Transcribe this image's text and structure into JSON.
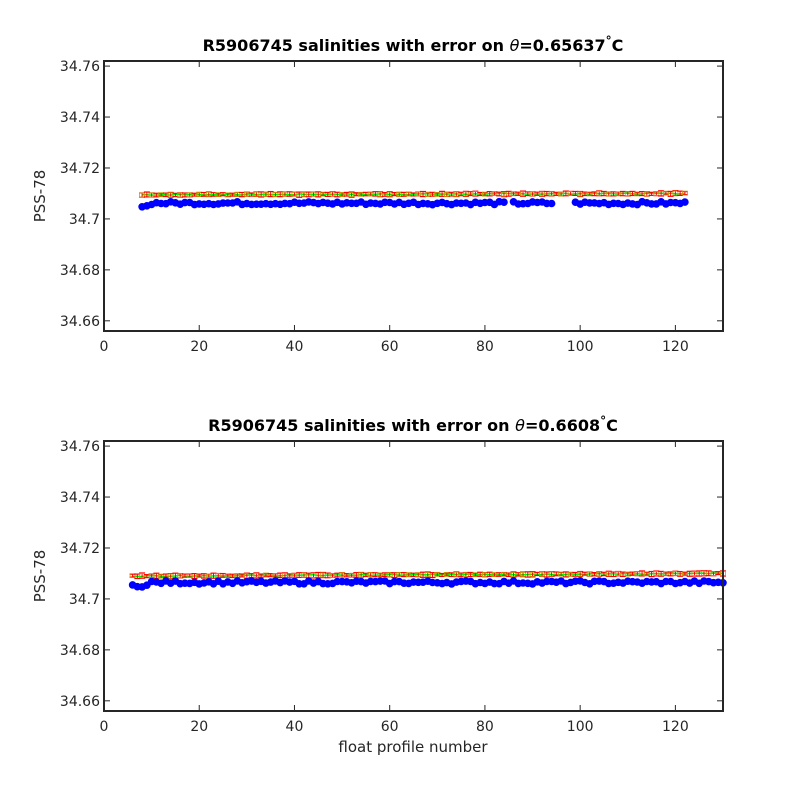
{
  "chart_data": [
    {
      "type": "scatter",
      "title_prefix": "R5906745 salinities with error on ",
      "title_theta": "θ",
      "title_value": "=0.65637",
      "title_deg": "°",
      "title_unit": "C",
      "xlabel": "",
      "ylabel": "PSS-78",
      "xlim": [
        0,
        130
      ],
      "ylim": [
        34.656,
        34.762
      ],
      "xticks": [
        "0",
        "20",
        "40",
        "60",
        "80",
        "100",
        "120"
      ],
      "yticks": [
        "34.66",
        "34.68",
        "34.7",
        "34.72",
        "34.74",
        "34.76"
      ],
      "float_x_range": [
        8,
        122
      ],
      "gap_x": [
        95,
        98
      ],
      "float_salinity_base": 34.7062,
      "reference_x_range": [
        8,
        122
      ],
      "reference_salinity_start": 34.7095,
      "reference_salinity_end": 34.71,
      "error_halfwidth": 0.0008,
      "colors": {
        "float": "#0000ff",
        "error": "#ff0000",
        "fit": "#00ee00",
        "box": "#c8a000"
      }
    },
    {
      "type": "scatter",
      "title_prefix": "R5906745 salinities with error on ",
      "title_theta": "θ",
      "title_value": "=0.6608",
      "title_deg": "°",
      "title_unit": "C",
      "xlabel": "float profile number",
      "ylabel": "PSS-78",
      "xlim": [
        0,
        130
      ],
      "ylim": [
        34.656,
        34.762
      ],
      "xticks": [
        "0",
        "20",
        "40",
        "60",
        "80",
        "100",
        "120"
      ],
      "yticks": [
        "34.66",
        "34.68",
        "34.7",
        "34.72",
        "34.74",
        "34.76"
      ],
      "float_x_range": [
        6,
        130
      ],
      "gap_x": [],
      "float_salinity_base": 34.7065,
      "reference_x_range": [
        6,
        130
      ],
      "reference_salinity_start": 34.709,
      "reference_salinity_end": 34.71,
      "error_halfwidth": 0.0008,
      "colors": {
        "float": "#0000ff",
        "error": "#ff0000",
        "fit": "#00ee00",
        "box": "#c8a000"
      }
    }
  ]
}
